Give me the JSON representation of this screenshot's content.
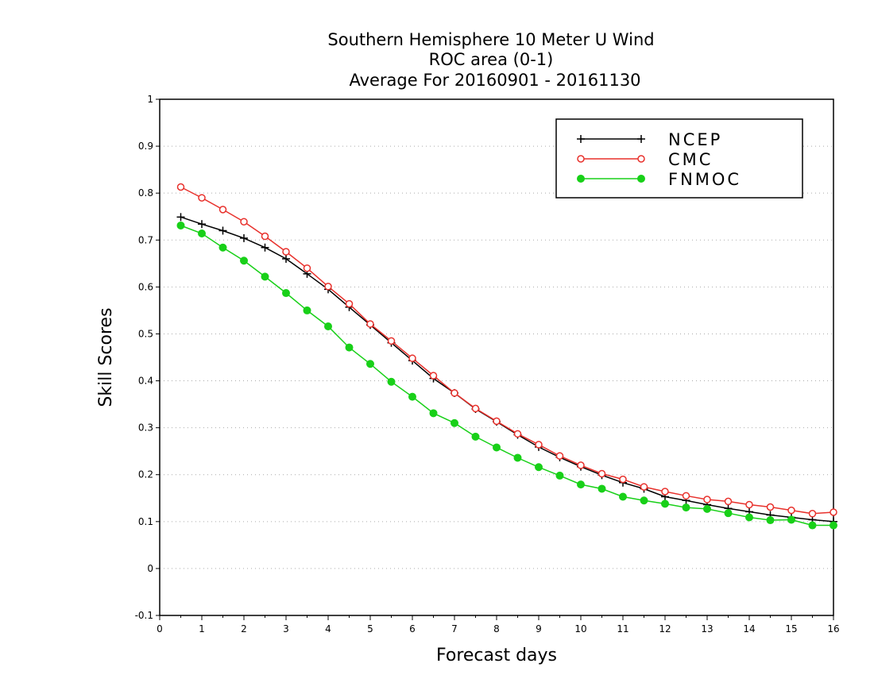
{
  "chart_data": {
    "type": "line",
    "title_lines": [
      "Southern Hemisphere 10 Meter U Wind",
      "ROC area (0-1)",
      "Average For 20160901 - 20161130"
    ],
    "xlabel": "Forecast days",
    "ylabel": "Skill Scores",
    "xlim": [
      0,
      16
    ],
    "ylim": [
      -0.1,
      1
    ],
    "x_ticks": [
      "0",
      "1",
      "2",
      "3",
      "4",
      "5",
      "6",
      "7",
      "8",
      "9",
      "10",
      "11",
      "12",
      "13",
      "14",
      "15",
      "16"
    ],
    "y_ticks": [
      "-0.1",
      "0",
      "0.1",
      "0.2",
      "0.3",
      "0.4",
      "0.5",
      "0.6",
      "0.7",
      "0.8",
      "0.9",
      "1"
    ],
    "grid": true,
    "legend_position": "top-right",
    "x": [
      0.5,
      1,
      1.5,
      2,
      2.5,
      3,
      3.5,
      4,
      4.5,
      5,
      5.5,
      6,
      6.5,
      7,
      7.5,
      8,
      8.5,
      9,
      9.5,
      10,
      10.5,
      11,
      11.5,
      12,
      12.5,
      13,
      13.5,
      14,
      14.5,
      15,
      15.5,
      16
    ],
    "series": [
      {
        "name": "NCEP",
        "color": "#000000",
        "marker": "plus",
        "values": [
          0.749,
          0.734,
          0.72,
          0.704,
          0.684,
          0.66,
          0.628,
          0.595,
          0.557,
          0.519,
          0.481,
          0.443,
          0.405,
          0.374,
          0.34,
          0.313,
          0.285,
          0.259,
          0.237,
          0.217,
          0.199,
          0.183,
          0.17,
          0.153,
          0.145,
          0.136,
          0.128,
          0.121,
          0.114,
          0.109,
          0.104,
          0.1
        ]
      },
      {
        "name": "CMC",
        "color": "#e8312c",
        "marker": "open-circle",
        "values": [
          0.813,
          0.79,
          0.765,
          0.739,
          0.708,
          0.675,
          0.64,
          0.601,
          0.564,
          0.521,
          0.485,
          0.448,
          0.411,
          0.374,
          0.341,
          0.314,
          0.287,
          0.264,
          0.24,
          0.22,
          0.202,
          0.19,
          0.174,
          0.164,
          0.155,
          0.147,
          0.143,
          0.136,
          0.131,
          0.124,
          0.117,
          0.12
        ]
      },
      {
        "name": "FNMOC",
        "color": "#18d018",
        "marker": "filled-circle",
        "values": [
          0.731,
          0.714,
          0.684,
          0.656,
          0.622,
          0.587,
          0.55,
          0.516,
          0.471,
          0.436,
          0.398,
          0.366,
          0.331,
          0.31,
          0.281,
          0.258,
          0.236,
          0.216,
          0.198,
          0.179,
          0.17,
          0.153,
          0.145,
          0.138,
          0.13,
          0.127,
          0.118,
          0.109,
          0.103,
          0.104,
          0.092,
          0.092
        ]
      }
    ]
  }
}
